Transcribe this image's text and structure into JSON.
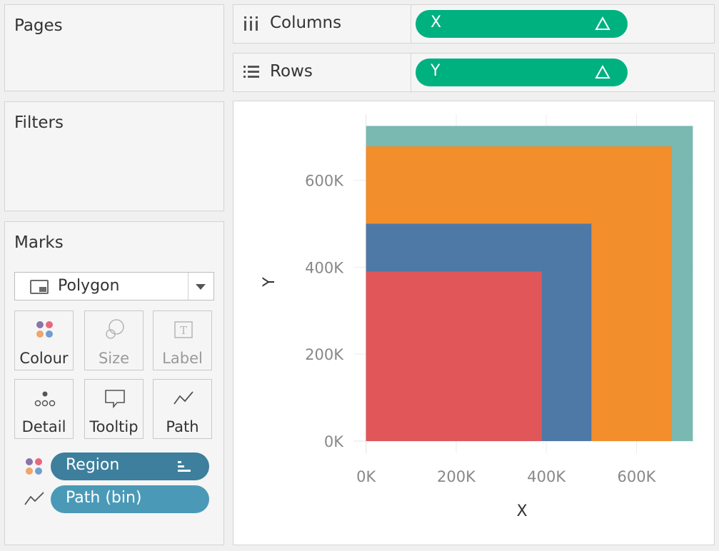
{
  "pages": {
    "title": "Pages"
  },
  "filters": {
    "title": "Filters"
  },
  "marks": {
    "title": "Marks",
    "mark_type": "Polygon",
    "buttons": [
      {
        "label": "Colour",
        "icon": "colour-icon",
        "enabled": true
      },
      {
        "label": "Size",
        "icon": "size-icon",
        "enabled": false
      },
      {
        "label": "Label",
        "icon": "label-icon",
        "enabled": false
      },
      {
        "label": "Detail",
        "icon": "detail-icon",
        "enabled": true
      },
      {
        "label": "Tooltip",
        "icon": "tooltip-icon",
        "enabled": true
      },
      {
        "label": "Path",
        "icon": "path-icon",
        "enabled": true
      }
    ],
    "fields": [
      {
        "label": "Region",
        "encoding": "colour",
        "icon": "sort-icon"
      },
      {
        "label": "Path (bin)",
        "encoding": "path"
      }
    ]
  },
  "shelves": {
    "columns": {
      "label": "Columns",
      "pill": "X",
      "pill_icon": "delta-icon"
    },
    "rows": {
      "label": "Rows",
      "pill": "Y",
      "pill_icon": "delta-icon"
    }
  },
  "colors": {
    "accent_green": "#00b180",
    "region_pill": "#3d7f9c",
    "path_pill": "#4a9ab7"
  },
  "chart_data": {
    "type": "area",
    "title": "",
    "xlabel": "X",
    "ylabel": "Y",
    "xlim": [
      -28000,
      726000
    ],
    "ylim": [
      -28000,
      752000
    ],
    "x_ticks": [
      "0K",
      "200K",
      "400K",
      "600K"
    ],
    "y_ticks": [
      "0K",
      "200K",
      "400K",
      "600K"
    ],
    "x_tick_values": [
      0,
      200000,
      400000,
      600000
    ],
    "y_tick_values": [
      0,
      200000,
      400000,
      600000
    ],
    "grid": true,
    "series": [
      {
        "color": "#7ab8b2",
        "x": [
          0,
          725000
        ],
        "y": [
          0,
          725000
        ]
      },
      {
        "color": "#f28e2b",
        "x": [
          0,
          678000
        ],
        "y": [
          0,
          678000
        ]
      },
      {
        "color": "#4e79a7",
        "x": [
          0,
          500000
        ],
        "y": [
          0,
          500000
        ]
      },
      {
        "color": "#e15759",
        "x": [
          0,
          390000
        ],
        "y": [
          0,
          390000
        ]
      }
    ]
  }
}
